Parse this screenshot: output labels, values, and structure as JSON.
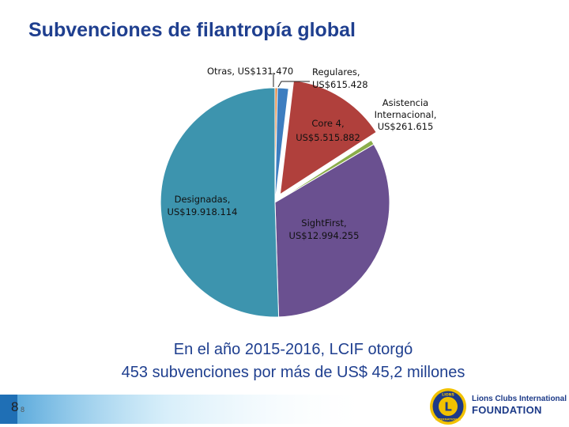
{
  "page": {
    "title": "Subvenciones de filantropía global",
    "caption_line1": "En el año 2015-2016, LCIF otorgó",
    "caption_line2": "453 subvenciones por más de US$ 45,2 millones",
    "page_number": "8",
    "page_number_small": "8",
    "brand_line1": "Lions Clubs International",
    "brand_line2": "FOUNDATION",
    "logo_text_top": "LIONS",
    "logo_text_bottom": "INTERNATIONAL",
    "logo_letter": "L"
  },
  "chart_data": {
    "type": "pie",
    "title": "",
    "start_angle_deg": 0,
    "direction": "clockwise",
    "slices": [
      {
        "name": "Otras",
        "value": 131470,
        "label_name": "Otras,",
        "label_value": "US$131.470",
        "color": "#e07b2d"
      },
      {
        "name": "Regulares",
        "value": 615428,
        "label_name": "Regulares,",
        "label_value": "US$615.428",
        "color": "#3d7ec0"
      },
      {
        "name": "Core 4",
        "value": 5515882,
        "label_name": "Core 4,",
        "label_value": "US$5.515.882",
        "color": "#b0403c"
      },
      {
        "name": "Asistencia Internacional",
        "value": 261615,
        "label_name": "Asistencia Internacional,",
        "label_value": "US$261.615",
        "color": "#8aad4a"
      },
      {
        "name": "SightFirst",
        "value": 12994255,
        "label_name": "SightFirst,",
        "label_value": "US$12.994.255",
        "color": "#6a5090"
      },
      {
        "name": "Designadas",
        "value": 19918114,
        "label_name": "Designadas,",
        "label_value": "US$19.918.114",
        "color": "#3d94ae"
      }
    ]
  }
}
